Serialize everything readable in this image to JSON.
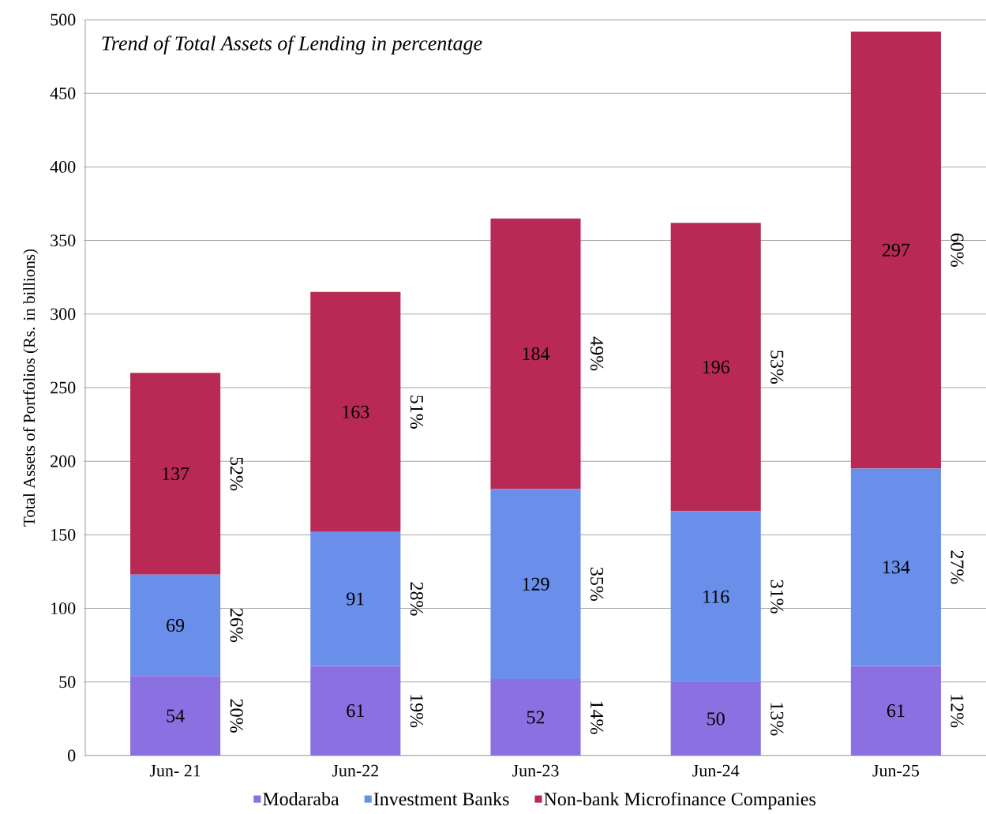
{
  "chart_data": {
    "type": "bar",
    "stacked": true,
    "title": "Trend of Total Assets of Lending in percentage",
    "ylabel": "Total Assets  of Portfolios (Rs. in billions)",
    "categories": [
      "Jun- 21",
      "Jun-22",
      "Jun-23",
      "Jun-24",
      "Jun-25"
    ],
    "series": [
      {
        "name": "Modaraba",
        "color": "#8a70e0",
        "values": [
          54,
          61,
          52,
          50,
          61
        ]
      },
      {
        "name": "Investment Banks",
        "color": "#6a8fea",
        "values": [
          69,
          91,
          129,
          116,
          134
        ]
      },
      {
        "name": "Non-bank Microfinance Companies",
        "color": "#b82a55",
        "values": [
          137,
          163,
          184,
          196,
          297
        ]
      }
    ],
    "data_labels": true,
    "ylim": [
      0,
      500
    ],
    "yticks": [
      0,
      50,
      100,
      150,
      200,
      250,
      300,
      350,
      400,
      450,
      500
    ],
    "grid": "y",
    "legend": "bottom",
    "annotations": [
      "20%",
      "26%",
      "52%",
      "19%",
      "28%",
      "51%",
      "14%",
      "35%",
      "49%",
      "13%",
      "31%",
      "53%",
      "12%",
      "27%",
      "60%"
    ]
  }
}
